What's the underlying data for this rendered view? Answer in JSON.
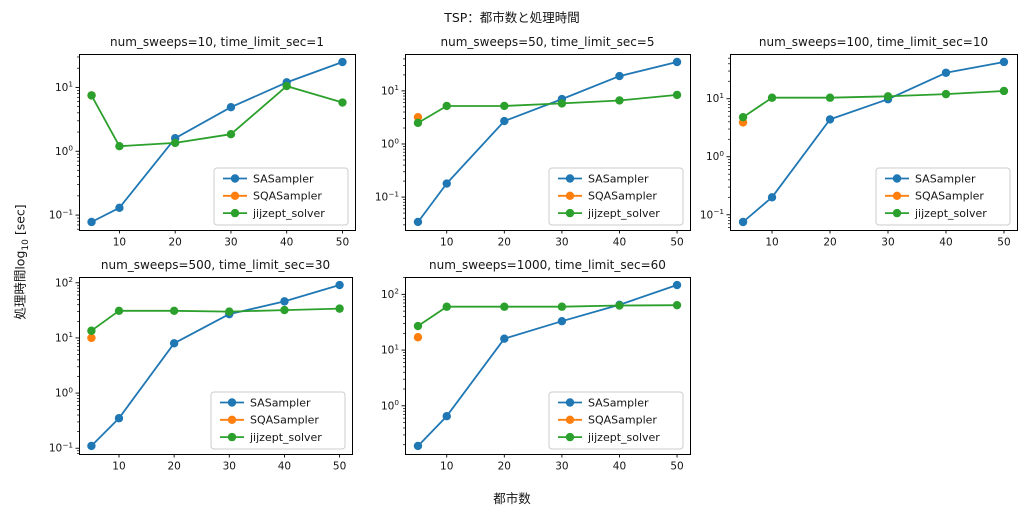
{
  "figure": {
    "title": "TSP：都市数と処理時間",
    "xlabel": "都市数",
    "ylabel": {
      "prefix": "処理時間log",
      "subscript": "10",
      "suffix": " [sec]"
    }
  },
  "colors": {
    "SASampler": "#1f77b4",
    "SQASampler": "#ff7f0e",
    "jijzept_solver": "#2ca02c",
    "axis": "#000000",
    "text": "#151515",
    "legend_border": "#cccccc",
    "background": "#ffffff"
  },
  "chart_data": [
    {
      "type": "line",
      "title": "num_sweeps=10, time_limit_sec=1",
      "xlabel": "",
      "ylabel": "",
      "yscale": "log",
      "x": [
        5,
        10,
        20,
        30,
        40,
        50
      ],
      "xticks": [
        10,
        20,
        30,
        40,
        50
      ],
      "xlim": [
        2.75,
        52.25
      ],
      "ylim": [
        0.0584,
        33.4
      ],
      "yticks_exp": [
        1,
        0,
        -1
      ],
      "grid": false,
      "legend_position": "lower right",
      "series": [
        {
          "name": "SASampler",
          "color": "#1f77b4",
          "values": [
            0.078,
            0.13,
            1.6,
            4.9,
            12,
            25
          ]
        },
        {
          "name": "SQASampler",
          "color": "#ff7f0e",
          "values": [
            7.5,
            null,
            null,
            null,
            null,
            null
          ]
        },
        {
          "name": "jijzept_solver",
          "color": "#2ca02c",
          "values": [
            7.5,
            1.2,
            1.35,
            1.85,
            10.5,
            5.8
          ]
        }
      ]
    },
    {
      "type": "line",
      "title": "num_sweeps=50, time_limit_sec=5",
      "xlabel": "",
      "ylabel": "",
      "yscale": "log",
      "x": [
        5,
        10,
        20,
        30,
        40,
        50
      ],
      "xticks": [
        10,
        20,
        30,
        40,
        50
      ],
      "xlim": [
        2.75,
        52.25
      ],
      "ylim": [
        0.024,
        49.5
      ],
      "yticks_exp": [
        1,
        0,
        -1
      ],
      "grid": false,
      "legend_position": "lower right",
      "series": [
        {
          "name": "SASampler",
          "color": "#1f77b4",
          "values": [
            0.034,
            0.18,
            2.7,
            7.0,
            19,
            35
          ]
        },
        {
          "name": "SQASampler",
          "color": "#ff7f0e",
          "values": [
            3.2,
            null,
            null,
            null,
            null,
            null
          ]
        },
        {
          "name": "jijzept_solver",
          "color": "#2ca02c",
          "values": [
            2.5,
            5.2,
            5.2,
            5.8,
            6.6,
            8.4
          ]
        }
      ]
    },
    {
      "type": "line",
      "title": "num_sweeps=100, time_limit_sec=10",
      "xlabel": "",
      "ylabel": "",
      "yscale": "log",
      "x": [
        5,
        10,
        20,
        30,
        40,
        50
      ],
      "xticks": [
        10,
        20,
        30,
        40,
        50
      ],
      "xlim": [
        2.75,
        52.25
      ],
      "ylim": [
        0.0546,
        59.0
      ],
      "yticks_exp": [
        1,
        0,
        -1
      ],
      "grid": false,
      "legend_position": "lower right",
      "series": [
        {
          "name": "SASampler",
          "color": "#1f77b4",
          "values": [
            0.075,
            0.2,
            4.4,
            9.8,
            28,
            43
          ]
        },
        {
          "name": "SQASampler",
          "color": "#ff7f0e",
          "values": [
            3.9,
            null,
            null,
            null,
            null,
            null
          ]
        },
        {
          "name": "jijzept_solver",
          "color": "#2ca02c",
          "values": [
            4.8,
            10.4,
            10.4,
            11,
            12,
            13.6
          ]
        }
      ]
    },
    {
      "type": "line",
      "title": "num_sweeps=500, time_limit_sec=30",
      "xlabel": "",
      "ylabel": "",
      "yscale": "log",
      "x": [
        5,
        10,
        20,
        30,
        40,
        50
      ],
      "xticks": [
        10,
        20,
        30,
        40,
        50
      ],
      "xlim": [
        2.75,
        52.25
      ],
      "ylim": [
        0.0786,
        127.3
      ],
      "yticks_exp": [
        2,
        1,
        0,
        -1
      ],
      "grid": false,
      "legend_position": "lower right",
      "series": [
        {
          "name": "SASampler",
          "color": "#1f77b4",
          "values": [
            0.11,
            0.35,
            8.0,
            27,
            46,
            91
          ]
        },
        {
          "name": "SQASampler",
          "color": "#ff7f0e",
          "values": [
            10,
            null,
            null,
            null,
            null,
            null
          ]
        },
        {
          "name": "jijzept_solver",
          "color": "#2ca02c",
          "values": [
            13.5,
            31,
            31,
            30,
            32,
            34
          ]
        }
      ]
    },
    {
      "type": "line",
      "title": "num_sweeps=1000, time_limit_sec=60",
      "xlabel": "",
      "ylabel": "",
      "yscale": "log",
      "x": [
        5,
        10,
        20,
        30,
        40,
        50
      ],
      "xticks": [
        10,
        20,
        30,
        40,
        50
      ],
      "xlim": [
        2.75,
        52.25
      ],
      "ylim": [
        0.1363,
        205
      ],
      "yticks_exp": [
        2,
        1,
        0
      ],
      "grid": false,
      "legend_position": "lower right",
      "series": [
        {
          "name": "SASampler",
          "color": "#1f77b4",
          "values": [
            0.19,
            0.65,
            16,
            33,
            65,
            147
          ]
        },
        {
          "name": "SQASampler",
          "color": "#ff7f0e",
          "values": [
            17,
            null,
            null,
            null,
            null,
            null
          ]
        },
        {
          "name": "jijzept_solver",
          "color": "#2ca02c",
          "values": [
            27,
            60,
            60,
            60,
            63,
            64
          ]
        }
      ]
    }
  ]
}
